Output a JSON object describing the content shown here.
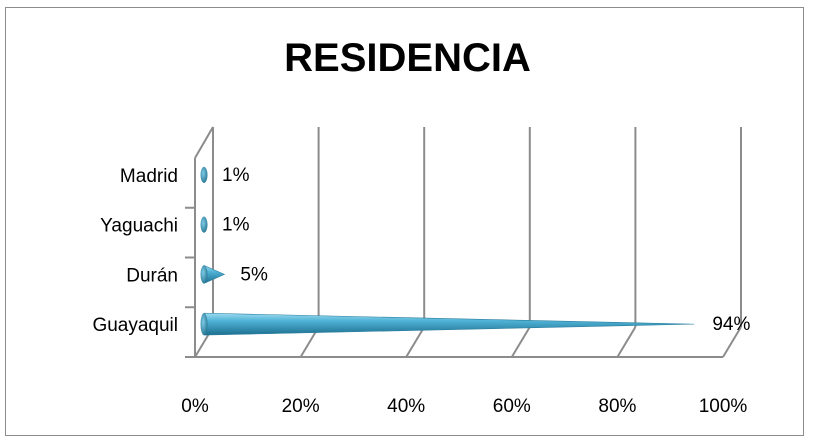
{
  "chart_data": {
    "type": "bar",
    "orientation": "horizontal",
    "style": "3d-cone",
    "title": "RESIDENCIA",
    "categories": [
      "Guayaquil",
      "Durán",
      "Yaguachi",
      "Madrid"
    ],
    "values": [
      94,
      5,
      1,
      1
    ],
    "value_labels": [
      "94%",
      "5%",
      "1%",
      "1%"
    ],
    "xlim": [
      0,
      100
    ],
    "xticks": [
      "0%",
      "20%",
      "40%",
      "60%",
      "80%",
      "100%"
    ],
    "xtick_values": [
      0,
      20,
      40,
      60,
      80,
      100
    ],
    "grid": true,
    "legend": "none",
    "colors": {
      "bar": "#3ea3c7",
      "bar_dark": "#1d6f8f",
      "bar_light": "#8fd4ea",
      "grid": "#8c8c8c"
    }
  }
}
